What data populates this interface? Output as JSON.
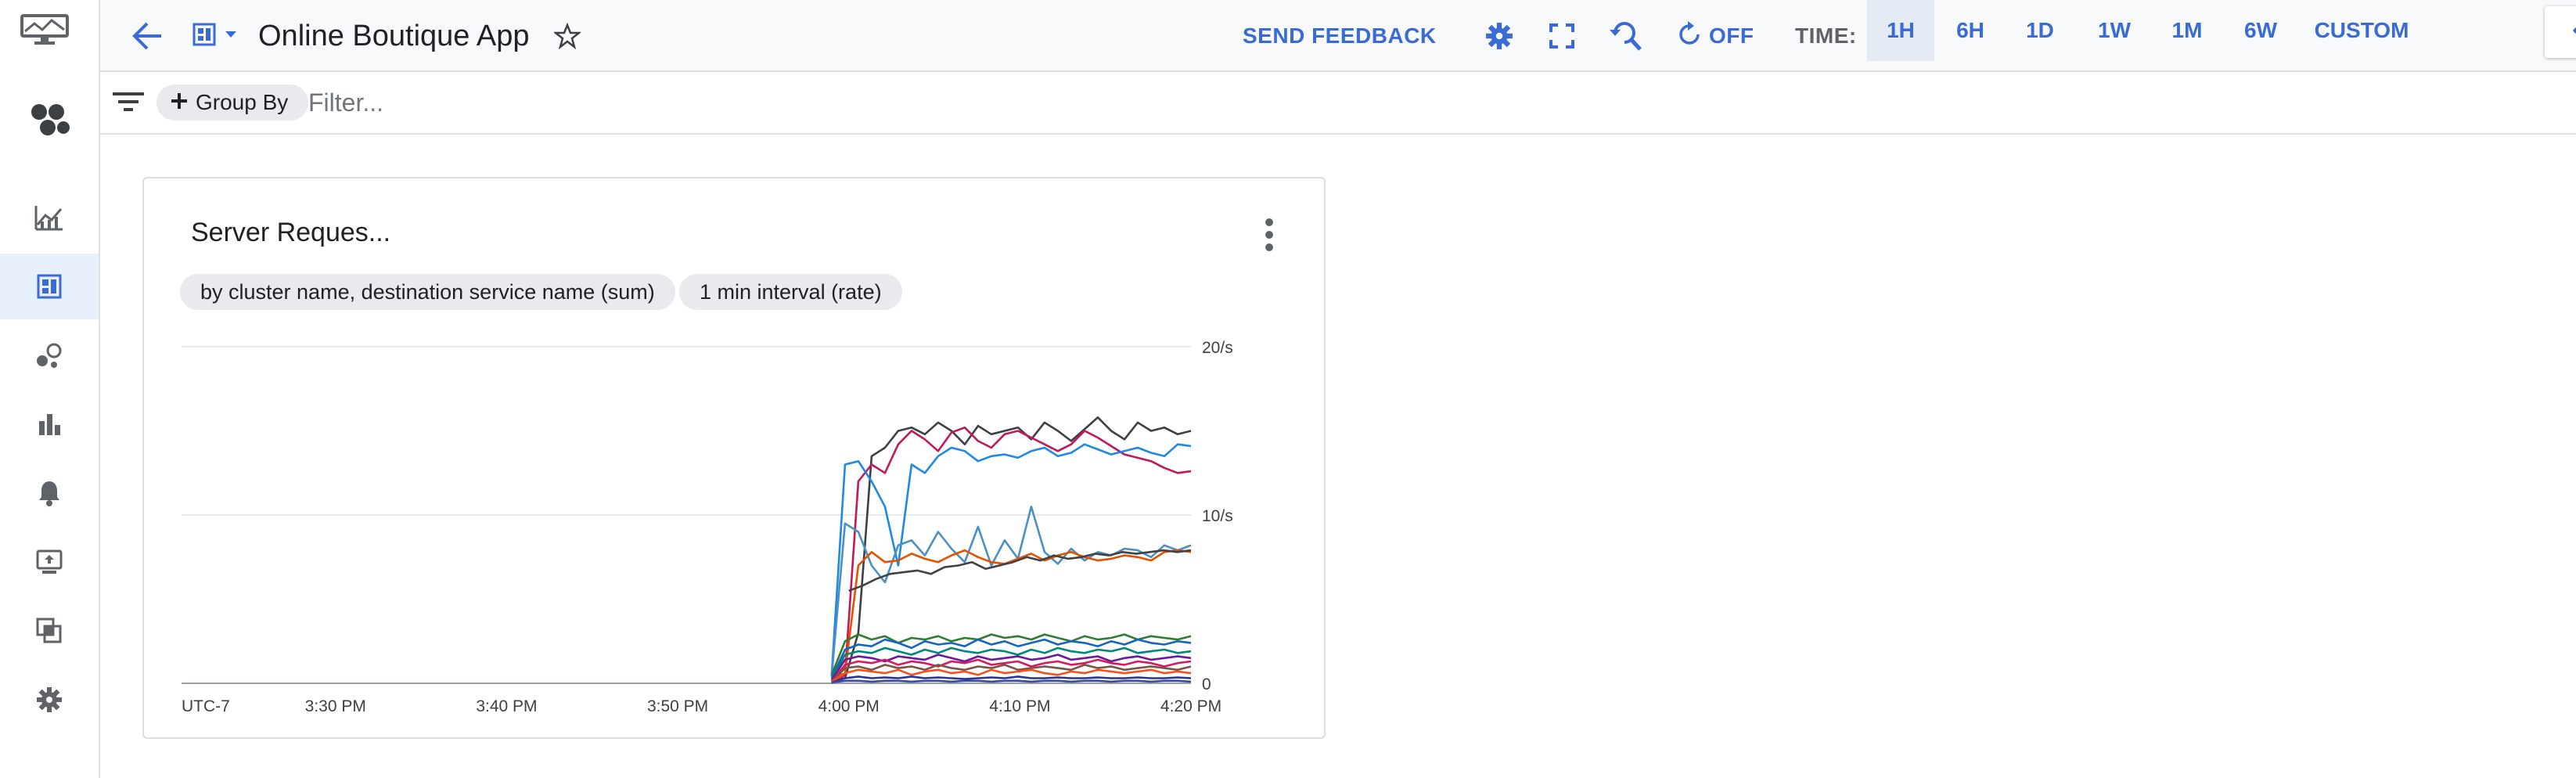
{
  "header": {
    "title": "Online Boutique App",
    "send_feedback": "SEND FEEDBACK",
    "auto_refresh": "OFF",
    "time_label": "TIME:",
    "time_ranges": [
      "1H",
      "6H",
      "1D",
      "1W",
      "1M",
      "6W",
      "CUSTOM"
    ],
    "time_selected": "1H"
  },
  "filter_bar": {
    "group_by": "Group By",
    "filter_placeholder": "Filter..."
  },
  "chart": {
    "title": "Server Reques...",
    "chip_aggregation": "by cluster name, destination service name (sum)",
    "chip_interval": "1 min interval (rate)"
  },
  "colors": {
    "accent": "#3a6bd5",
    "rail_active": "#e8f0fe",
    "time_selected_bg": "#e4ebf5"
  },
  "icons": {
    "rail": [
      "monitoring-logo-icon",
      "overview-icon",
      "metrics-explorer-icon",
      "dashboards-icon",
      "services-icon",
      "groups-icon",
      "alerting-icon",
      "uptime-checks-icon",
      "integrations-icon",
      "settings-icon"
    ],
    "topbar": [
      "back-arrow-icon",
      "dashboard-icon",
      "star-icon",
      "gear-icon",
      "fullscreen-icon",
      "zoom-reset-icon",
      "refresh-icon",
      "eye-icon"
    ]
  },
  "chart_data": {
    "type": "line",
    "title": "Server Reques...",
    "timezone_label": "UTC-7",
    "x_ticks": [
      "3:30 PM",
      "3:40 PM",
      "3:50 PM",
      "4:00 PM",
      "4:10 PM",
      "4:20 PM"
    ],
    "y_ticks": [
      "0",
      "10/s",
      "20/s"
    ],
    "ylim": [
      0,
      20
    ],
    "x_range": [
      "3:21 PM",
      "4:20 PM"
    ],
    "grid": true,
    "series": [
      {
        "color": "#3c4043",
        "start": "3:59 PM",
        "values": [
          0.2,
          0.3,
          3,
          13.5,
          14,
          15,
          15.2,
          14.8,
          15.5,
          15,
          14.2,
          15.3,
          14.8,
          15,
          15.2,
          14.5,
          15.5,
          15,
          14.4,
          15.1,
          15.8,
          15,
          14.5,
          15.5,
          15,
          15.2,
          14.8,
          15
        ]
      },
      {
        "color": "#c2185b",
        "start": "3:59 PM",
        "values": [
          0,
          0.5,
          12,
          13,
          12.5,
          14.2,
          15,
          14.5,
          13.8,
          14.9,
          15.2,
          14.4,
          14,
          14.8,
          15,
          14.6,
          14.2,
          13.8,
          14.2,
          15,
          14.6,
          14.1,
          13.6,
          13.4,
          13.2,
          12.8,
          12.5,
          12.6
        ]
      },
      {
        "color": "#1e88e5",
        "start": "3:59 PM",
        "values": [
          0.5,
          13,
          13.2,
          12,
          10.5,
          7,
          13,
          12.5,
          13.5,
          14,
          13.8,
          13.2,
          13.5,
          13.6,
          13.4,
          13.8,
          14,
          13.5,
          13.7,
          14.2,
          13.9,
          13.6,
          13.8,
          14,
          13.7,
          13.5,
          14.2,
          14.1
        ]
      },
      {
        "color": "#4a90c4",
        "start": "3:59 PM",
        "values": [
          0.4,
          9.5,
          9,
          7,
          6,
          8.2,
          8.5,
          7.6,
          9,
          8,
          7.2,
          9.3,
          7,
          8.5,
          7.4,
          10.5,
          7.8,
          7.1,
          8,
          7.3,
          7.8,
          7.6,
          8,
          7.9,
          7.5,
          8.2,
          7.9,
          8.2
        ]
      },
      {
        "color": "#e65100",
        "start": "3:59 PM",
        "values": [
          0.3,
          0.6,
          7,
          7.8,
          7.2,
          7.3,
          7.7,
          7.4,
          7.2,
          7.6,
          7.9,
          7.5,
          7.2,
          7.1,
          7.4,
          7.7,
          7.3,
          7.6,
          7.8,
          7.5,
          7.3,
          7.4,
          7.6,
          7.5,
          7.3,
          7.8,
          7.9,
          7.8
        ]
      },
      {
        "color": "#424242",
        "start": "4:00 PM",
        "values": [
          5.5,
          5.8,
          6.2,
          6.5,
          6.6,
          6.7,
          6.5,
          6.9,
          7,
          7.2,
          6.8,
          7,
          7.2,
          7.5,
          7.3,
          7.6,
          7.4,
          7.5,
          7.7,
          7.6,
          7.8,
          7.7,
          7.8,
          7.9,
          7.8,
          7.9
        ]
      },
      {
        "color": "#2e7d32",
        "start": "3:59 PM",
        "values": [
          0.5,
          2.5,
          2.9,
          2.6,
          2.8,
          2.4,
          2.7,
          2.6,
          2.8,
          2.5,
          2.7,
          2.6,
          2.9,
          2.7,
          2.8,
          2.6,
          2.9,
          2.7,
          2.5,
          2.8,
          2.6,
          2.7,
          2.9,
          2.6,
          2.8,
          2.7,
          2.6,
          2.8
        ]
      },
      {
        "color": "#1565c0",
        "start": "3:59 PM",
        "values": [
          0.3,
          2,
          2.3,
          2.2,
          2.6,
          2.4,
          2.1,
          2.5,
          2.3,
          2.4,
          2.2,
          2.6,
          2.3,
          2.5,
          2.2,
          2.4,
          2.6,
          2.3,
          2.5,
          2.4,
          2.2,
          2.5,
          2.3,
          2.6,
          2.4,
          2.3,
          2.5,
          2.4
        ]
      },
      {
        "color": "#00897b",
        "start": "3:59 PM",
        "values": [
          0.2,
          1.7,
          1.9,
          1.8,
          2.1,
          1.9,
          1.7,
          2,
          1.8,
          2.1,
          1.9,
          1.8,
          2,
          1.9,
          1.7,
          2,
          1.8,
          2.1,
          1.9,
          1.8,
          2,
          1.9,
          2.1,
          1.8,
          1.9,
          2,
          1.8,
          1.9
        ]
      },
      {
        "color": "#6a1b9a",
        "start": "3:59 PM",
        "values": [
          0.2,
          1.4,
          1.6,
          1.5,
          1.3,
          1.6,
          1.5,
          1.4,
          1.7,
          1.5,
          1.3,
          1.6,
          1.4,
          1.5,
          1.6,
          1.4,
          1.5,
          1.7,
          1.4,
          1.5,
          1.6,
          1.3,
          1.5,
          1.6,
          1.4,
          1.5,
          1.6,
          1.5
        ]
      },
      {
        "color": "#d81b60",
        "start": "3:59 PM",
        "values": [
          0.1,
          1.1,
          1.3,
          1.2,
          1.4,
          1.1,
          1.3,
          1.2,
          1,
          1.3,
          1.2,
          1.4,
          1.1,
          1.2,
          1.3,
          1,
          1.2,
          1.3,
          1.1,
          1.2,
          1.4,
          1.2,
          1.1,
          1.3,
          1.2,
          1,
          1.2,
          1.3
        ]
      },
      {
        "color": "#795548",
        "start": "3:59 PM",
        "values": [
          0.1,
          0.9,
          1,
          0.8,
          1.1,
          0.9,
          1,
          0.8,
          1.1,
          0.9,
          0.8,
          1,
          0.9,
          1.1,
          0.8,
          0.9,
          1,
          0.9,
          0.8,
          1.1,
          0.9,
          1,
          0.8,
          0.9,
          1,
          0.9,
          0.8,
          1
        ]
      },
      {
        "color": "#f4511e",
        "start": "3:59 PM",
        "values": [
          0.1,
          0.6,
          0.8,
          0.7,
          0.6,
          0.8,
          0.5,
          0.7,
          0.8,
          0.6,
          0.7,
          0.5,
          0.8,
          0.6,
          0.7,
          0.8,
          0.6,
          0.5,
          0.7,
          0.6,
          0.8,
          0.7,
          0.6,
          0.7,
          0.8,
          0.6,
          0.7,
          0.6
        ]
      },
      {
        "color": "#283593",
        "start": "3:59 PM",
        "values": [
          0.05,
          0.3,
          0.4,
          0.3,
          0.35,
          0.3,
          0.4,
          0.3,
          0.35,
          0.3,
          0.25,
          0.3,
          0.35,
          0.3,
          0.4,
          0.3,
          0.3,
          0.35,
          0.3,
          0.3,
          0.35,
          0.3,
          0.3,
          0.35,
          0.3,
          0.3,
          0.35,
          0.3
        ]
      },
      {
        "color": "#3949ab",
        "start": "3:59 PM",
        "values": [
          0.05,
          0.15,
          0.15,
          0.1,
          0.15,
          0.15,
          0.1,
          0.15,
          0.15,
          0.1,
          0.15,
          0.15,
          0.1,
          0.15,
          0.15,
          0.1,
          0.15,
          0.15,
          0.1,
          0.15,
          0.15,
          0.1,
          0.15,
          0.15,
          0.1,
          0.15,
          0.15,
          0.1
        ]
      }
    ]
  }
}
